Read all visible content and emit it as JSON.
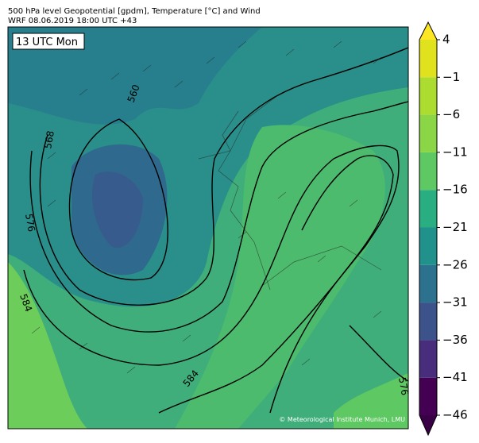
{
  "header": {
    "line1": "500 hPa level Geopotential [gpdm], Temperature [°C] and Wind",
    "line2": "WRF 08.06.2019 18:00 UTC +43"
  },
  "map": {
    "time_label": "13 UTC Mon",
    "contour_labels": [
      "560",
      "568",
      "576",
      "584",
      "584",
      "576"
    ],
    "credit": "© Meteorological Institute Munich, LMU"
  },
  "colorbar": {
    "lim": [
      -46,
      4
    ],
    "ticks": [
      {
        "value": -46,
        "label": "−46"
      },
      {
        "value": -41,
        "label": "−41"
      },
      {
        "value": -36,
        "label": "−36"
      },
      {
        "value": -31,
        "label": "−31"
      },
      {
        "value": -26,
        "label": "−26"
      },
      {
        "value": -21,
        "label": "−21"
      },
      {
        "value": -16,
        "label": "−16"
      },
      {
        "value": -11,
        "label": "−11"
      },
      {
        "value": -6,
        "label": "−6"
      },
      {
        "value": -1,
        "label": "−1"
      },
      4
    ],
    "colors": [
      "#440154",
      "#472d7b",
      "#3b528b",
      "#2c728e",
      "#21918c",
      "#28ae80",
      "#5ec962",
      "#8bd646",
      "#addc30",
      "#e0e21d"
    ],
    "under_color": "#3a0045",
    "over_color": "#fde725"
  }
}
